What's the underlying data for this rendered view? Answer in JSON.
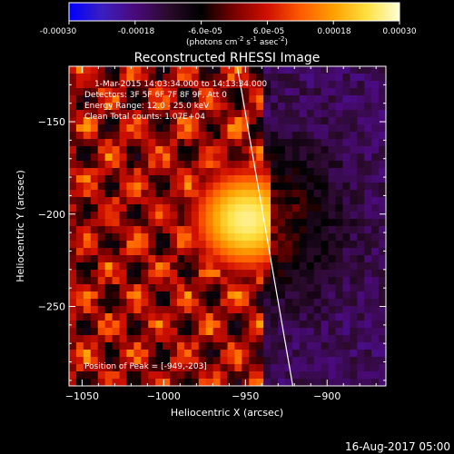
{
  "colors": {
    "background": "#000000",
    "text": "#ffffff",
    "limb": "#ffffff",
    "colorbar_stops": [
      "#0000ff",
      "#3a1fc0",
      "#4a0a7a",
      "#2a0a2a",
      "#000000",
      "#7a0000",
      "#d01000",
      "#ff5a00",
      "#ffa000",
      "#ffe040",
      "#ffffd8"
    ]
  },
  "colorbar": {
    "tick_labels": [
      "-0.00030",
      "-0.00018",
      "-6.0e-05",
      "6.0e-05",
      "0.00018",
      "0.00030"
    ],
    "units_text": "(photons cm",
    "units_sup1": "-2",
    "units_mid1": " s",
    "units_sup2": "-1",
    "units_mid2": " asec",
    "units_sup3": "-2",
    "units_end": ")"
  },
  "info": {
    "time_range": "1-Mar-2015 14:03:34.000 to 14:13:34.000",
    "detectors": "Detectors: 3F 5F 6F 7F 8F 9F, Att 0",
    "energy": "Energy Range: 12.0 - 25.0 keV",
    "clean": "Clean     Total counts: 1.07E+04",
    "peak": "Position of Peak = [-949,-203]"
  },
  "footer": {
    "date": "16-Aug-2017 05:00"
  },
  "chart_data": {
    "type": "heatmap",
    "title": "Reconstructed RHESSI Image",
    "xlabel": "Heliocentric X (arcsec)",
    "ylabel": "Heliocentric Y (arcsec)",
    "xlim": [
      -1058,
      -864
    ],
    "ylim": [
      -293,
      -120
    ],
    "x_ticks": [
      -1050,
      -1000,
      -950,
      -900
    ],
    "x_tick_labels": [
      "−1050",
      "−1000",
      "−950",
      "−900"
    ],
    "y_ticks": [
      -150,
      -200,
      -250
    ],
    "y_tick_labels": [
      "−150",
      "−200",
      "−250"
    ],
    "colorbar_range": [
      -0.0003,
      0.0003
    ],
    "peak_position": [
      -949,
      -203
    ],
    "limb_line": [
      [
        -955,
        -120
      ],
      [
        -921,
        -293
      ]
    ]
  }
}
